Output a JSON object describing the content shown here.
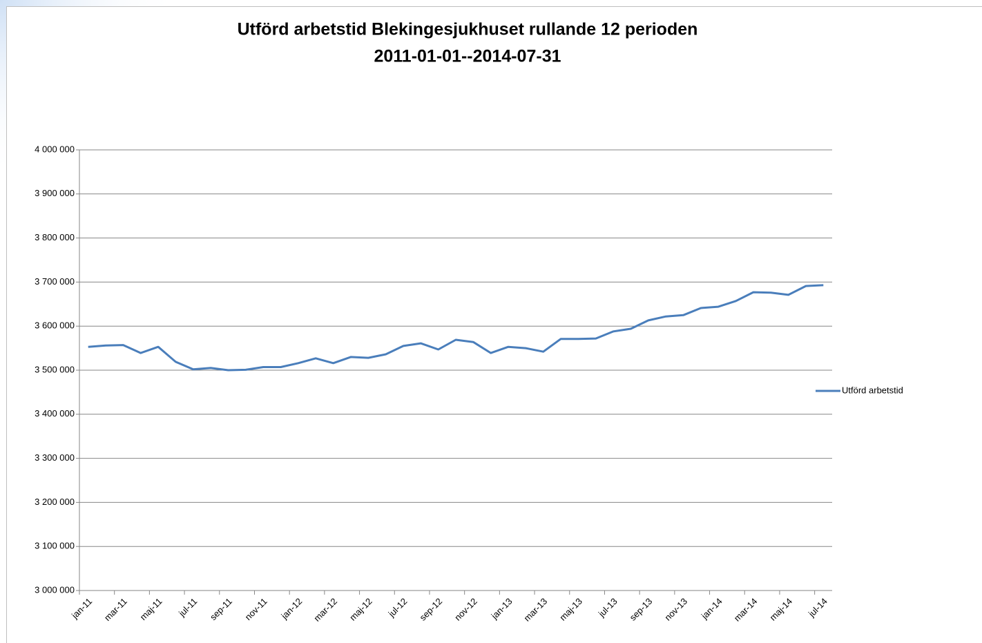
{
  "chart_data": {
    "type": "line",
    "title": "Utförd arbetstid Blekingesjukhuset rullande 12 perioden",
    "subtitle": "2011-01-01--2014-07-31",
    "categories": [
      "jan-11",
      null,
      "mar-11",
      null,
      "maj-11",
      null,
      "jul-11",
      null,
      "sep-11",
      null,
      "nov-11",
      null,
      "jan-12",
      null,
      "mar-12",
      null,
      "maj-12",
      null,
      "jul-12",
      null,
      "sep-12",
      null,
      "nov-12",
      null,
      "jan-13",
      null,
      "mar-13",
      null,
      "maj-13",
      null,
      "jul-13",
      null,
      "sep-13",
      null,
      "nov-13",
      null,
      "jan-14",
      null,
      "mar-14",
      null,
      "maj-14",
      null,
      "jul-14"
    ],
    "series": [
      {
        "name": "Utförd arbetstid",
        "color": "#4a7ebb",
        "values": [
          3553000,
          3556000,
          3557000,
          3539000,
          3553000,
          3519000,
          3502000,
          3505000,
          3500000,
          3501000,
          3507000,
          3507000,
          3516000,
          3527000,
          3516000,
          3530000,
          3528000,
          3536000,
          3555000,
          3561000,
          3547000,
          3569000,
          3564000,
          3539000,
          3553000,
          3550000,
          3542000,
          3571000,
          3571000,
          3572000,
          3588000,
          3594000,
          3613000,
          3622000,
          3625000,
          3641000,
          3644000,
          3657000,
          3677000,
          3676000,
          3671000,
          3691000,
          3693000
        ]
      }
    ],
    "ylim": [
      3000000,
      4000000
    ],
    "yticks": [
      {
        "value": 3000000,
        "label": "3 000 000"
      },
      {
        "value": 3100000,
        "label": "3 100 000"
      },
      {
        "value": 3200000,
        "label": "3 200 000"
      },
      {
        "value": 3300000,
        "label": "3 300 000"
      },
      {
        "value": 3400000,
        "label": "3 400 000"
      },
      {
        "value": 3500000,
        "label": "3 500 000"
      },
      {
        "value": 3600000,
        "label": "3 600 000"
      },
      {
        "value": 3700000,
        "label": "3 700 000"
      },
      {
        "value": 3800000,
        "label": "3 800 000"
      },
      {
        "value": 3900000,
        "label": "3 900 000"
      },
      {
        "value": 4000000,
        "label": "4 000 000"
      }
    ],
    "grid": true,
    "legend": "right"
  }
}
